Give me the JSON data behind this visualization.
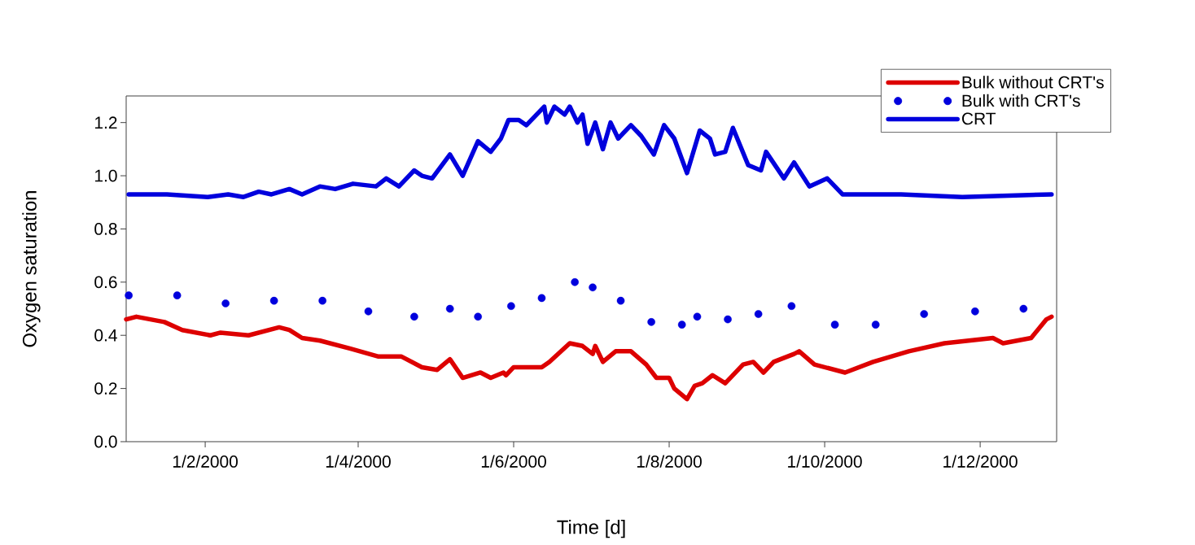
{
  "chart_data": {
    "type": "line",
    "xlabel": "Time [d]",
    "ylabel": "Oxygen saturation",
    "xlim": [
      "2000-01-01",
      "2000-12-31"
    ],
    "xticks": [
      {
        "value": "2000-02-01",
        "label": "1/2/2000"
      },
      {
        "value": "2000-04-01",
        "label": "1/4/2000"
      },
      {
        "value": "2000-06-01",
        "label": "1/6/2000"
      },
      {
        "value": "2000-08-01",
        "label": "1/8/2000"
      },
      {
        "value": "2000-10-01",
        "label": "1/10/2000"
      },
      {
        "value": "2000-12-01",
        "label": "1/12/2000"
      }
    ],
    "ylim": [
      0,
      1.3
    ],
    "yticks": [
      {
        "value": 0,
        "label": "0.0"
      },
      0.2,
      0.4,
      0.6,
      0.8,
      {
        "value": 1,
        "label": "1.0"
      },
      1.2
    ],
    "legend": "top right",
    "series": [
      {
        "name": "Bulk without CRT's",
        "marker": "none",
        "color": "#dd0000",
        "x": [
          "2000-01-01",
          "2000-01-05",
          "2000-01-16",
          "2000-01-23",
          "2000-02-03",
          "2000-02-07",
          "2000-02-18",
          "2000-03-01",
          "2000-03-05",
          "2000-03-10",
          "2000-03-17",
          "2000-03-29",
          "2000-04-09",
          "2000-04-18",
          "2000-04-26",
          "2000-05-02",
          "2000-05-07",
          "2000-05-12",
          "2000-05-19",
          "2000-05-23",
          "2000-05-28",
          "2000-05-29",
          "2000-06-01",
          "2000-06-06",
          "2000-06-12",
          "2000-06-15",
          "2000-06-23",
          "2000-06-28",
          "2000-07-02",
          "2000-07-03",
          "2000-07-06",
          "2000-07-11",
          "2000-07-17",
          "2000-07-23",
          "2000-07-27",
          "2000-08-01",
          "2000-08-03",
          "2000-08-08",
          "2000-08-11",
          "2000-08-14",
          "2000-08-18",
          "2000-08-23",
          "2000-08-30",
          "2000-09-03",
          "2000-09-07",
          "2000-09-11",
          "2000-09-19",
          "2000-09-21",
          "2000-09-27",
          "2000-10-09",
          "2000-10-20",
          "2000-11-03",
          "2000-11-17",
          "2000-12-06",
          "2000-12-10",
          "2000-12-21",
          "2000-12-27",
          "2000-12-29"
        ],
        "values": [
          0.46,
          0.47,
          0.45,
          0.42,
          0.4,
          0.41,
          0.4,
          0.43,
          0.42,
          0.39,
          0.38,
          0.35,
          0.32,
          0.32,
          0.28,
          0.27,
          0.31,
          0.24,
          0.26,
          0.24,
          0.26,
          0.25,
          0.28,
          0.28,
          0.28,
          0.3,
          0.37,
          0.36,
          0.33,
          0.36,
          0.3,
          0.34,
          0.34,
          0.29,
          0.24,
          0.24,
          0.2,
          0.16,
          0.21,
          0.22,
          0.25,
          0.22,
          0.29,
          0.3,
          0.26,
          0.3,
          0.33,
          0.34,
          0.29,
          0.26,
          0.3,
          0.34,
          0.37,
          0.39,
          0.37,
          0.39,
          0.46,
          0.47
        ]
      },
      {
        "name": "Bulk with CRT's",
        "type": "scatter",
        "marker": "circle",
        "color": "#0000dd",
        "x": [
          "2000-01-02",
          "2000-01-21",
          "2000-02-09",
          "2000-02-28",
          "2000-03-18",
          "2000-04-05",
          "2000-04-23",
          "2000-05-07",
          "2000-05-18",
          "2000-05-31",
          "2000-06-12",
          "2000-06-25",
          "2000-07-02",
          "2000-07-13",
          "2000-07-25",
          "2000-08-06",
          "2000-08-12",
          "2000-08-24",
          "2000-09-05",
          "2000-09-18",
          "2000-10-05",
          "2000-10-21",
          "2000-11-09",
          "2000-11-29",
          "2000-12-18"
        ],
        "values": [
          0.55,
          0.55,
          0.52,
          0.53,
          0.53,
          0.49,
          0.47,
          0.5,
          0.47,
          0.51,
          0.54,
          0.6,
          0.58,
          0.53,
          0.45,
          0.44,
          0.47,
          0.46,
          0.48,
          0.51,
          0.44,
          0.44,
          0.48,
          0.49,
          0.5
        ]
      },
      {
        "name": "CRT",
        "marker": "none",
        "color": "#0000dd",
        "x": [
          "2000-01-02",
          "2000-01-17",
          "2000-02-02",
          "2000-02-10",
          "2000-02-16",
          "2000-02-22",
          "2000-02-27",
          "2000-03-05",
          "2000-03-10",
          "2000-03-17",
          "2000-03-23",
          "2000-03-30",
          "2000-04-08",
          "2000-04-12",
          "2000-04-17",
          "2000-04-23",
          "2000-04-26",
          "2000-04-30",
          "2000-05-07",
          "2000-05-12",
          "2000-05-18",
          "2000-05-23",
          "2000-05-27",
          "2000-05-30",
          "2000-06-03",
          "2000-06-06",
          "2000-06-10",
          "2000-06-13",
          "2000-06-14",
          "2000-06-17",
          "2000-06-21",
          "2000-06-23",
          "2000-06-26",
          "2000-06-28",
          "2000-06-30",
          "2000-07-03",
          "2000-07-06",
          "2000-07-09",
          "2000-07-12",
          "2000-07-17",
          "2000-07-21",
          "2000-07-26",
          "2000-07-30",
          "2000-08-03",
          "2000-08-08",
          "2000-08-13",
          "2000-08-17",
          "2000-08-19",
          "2000-08-23",
          "2000-08-26",
          "2000-09-01",
          "2000-09-06",
          "2000-09-08",
          "2000-09-15",
          "2000-09-19",
          "2000-09-25",
          "2000-10-02",
          "2000-10-08",
          "2000-10-20",
          "2000-10-31",
          "2000-11-24",
          "2000-12-29"
        ],
        "values": [
          0.93,
          0.93,
          0.92,
          0.93,
          0.92,
          0.94,
          0.93,
          0.95,
          0.93,
          0.96,
          0.95,
          0.97,
          0.96,
          0.99,
          0.96,
          1.02,
          1.0,
          0.99,
          1.08,
          1.0,
          1.13,
          1.09,
          1.14,
          1.21,
          1.21,
          1.19,
          1.23,
          1.26,
          1.2,
          1.26,
          1.23,
          1.26,
          1.2,
          1.23,
          1.12,
          1.2,
          1.1,
          1.2,
          1.14,
          1.19,
          1.15,
          1.08,
          1.19,
          1.14,
          1.01,
          1.17,
          1.14,
          1.08,
          1.09,
          1.18,
          1.04,
          1.02,
          1.09,
          0.99,
          1.05,
          0.96,
          0.99,
          0.93,
          0.93,
          0.93,
          0.92,
          0.93
        ]
      }
    ]
  }
}
